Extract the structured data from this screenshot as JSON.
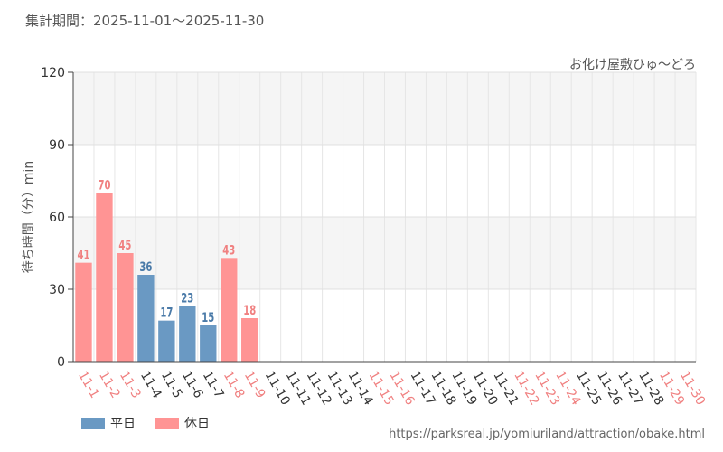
{
  "header": {
    "period_text": "集計期間：2025-11-01～2025-11-30"
  },
  "attraction_name": "お化け屋敷ひゅ～どろ",
  "source_url": "https://parksreal.jp/yomiuriland/attraction/obake.html",
  "legend": [
    {
      "label": "平日",
      "color": "#6a99c3"
    },
    {
      "label": "休日",
      "color": "#ff9494"
    }
  ],
  "colors": {
    "weekday_bar": "#6a99c3",
    "holiday_bar": "#ff9494",
    "weekday_label": "#4a7aa8",
    "holiday_label": "#f08080",
    "holiday_tick": "#f08080",
    "weekday_tick": "#333333"
  },
  "chart_data": {
    "type": "bar",
    "title": "",
    "xlabel": "",
    "ylabel": "待ち時間（分）min",
    "ylim": [
      0,
      120
    ],
    "yticks": [
      0,
      30,
      60,
      90,
      120
    ],
    "grid": true,
    "categories": [
      "11-1",
      "11-2",
      "11-3",
      "11-4",
      "11-5",
      "11-6",
      "11-7",
      "11-8",
      "11-9",
      "11-10",
      "11-11",
      "11-12",
      "11-13",
      "11-14",
      "11-15",
      "11-16",
      "11-17",
      "11-18",
      "11-19",
      "11-20",
      "11-21",
      "11-22",
      "11-23",
      "11-24",
      "11-25",
      "11-26",
      "11-27",
      "11-28",
      "11-29",
      "11-30"
    ],
    "values": [
      41,
      70,
      45,
      36,
      17,
      23,
      15,
      43,
      18,
      null,
      null,
      null,
      null,
      null,
      null,
      null,
      null,
      null,
      null,
      null,
      null,
      null,
      null,
      null,
      null,
      null,
      null,
      null,
      null,
      null
    ],
    "day_type": [
      "holiday",
      "holiday",
      "holiday",
      "weekday",
      "weekday",
      "weekday",
      "weekday",
      "holiday",
      "holiday",
      "weekday",
      "weekday",
      "weekday",
      "weekday",
      "weekday",
      "holiday",
      "holiday",
      "weekday",
      "weekday",
      "weekday",
      "weekday",
      "weekday",
      "holiday",
      "holiday",
      "holiday",
      "weekday",
      "weekday",
      "weekday",
      "weekday",
      "holiday",
      "holiday"
    ],
    "series": [
      {
        "name": "平日",
        "category_type": "weekday"
      },
      {
        "name": "休日",
        "category_type": "holiday"
      }
    ]
  }
}
